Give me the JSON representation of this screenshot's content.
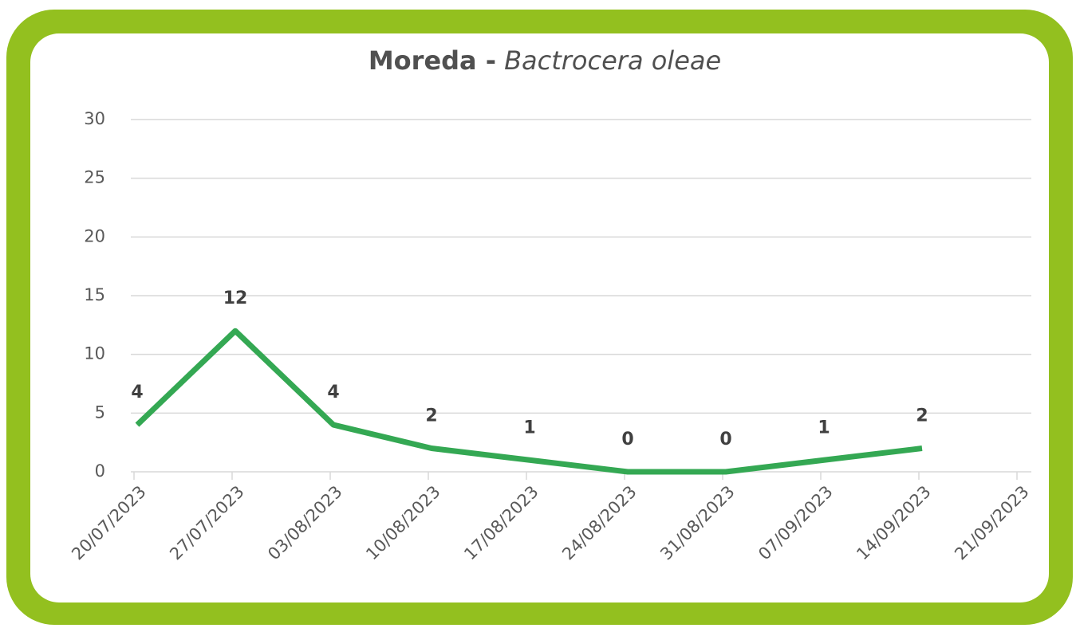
{
  "chart_data": {
    "type": "line",
    "title": [
      "Moreda -",
      "Bactrocera oleae"
    ],
    "categories": [
      "20/07/2023",
      "27/07/2023",
      "03/08/2023",
      "10/08/2023",
      "17/08/2023",
      "24/08/2023",
      "31/08/2023",
      "07/09/2023",
      "14/09/2023",
      "21/09/2023"
    ],
    "values": [
      4,
      12,
      4,
      2,
      1,
      0,
      0,
      1,
      2,
      null
    ],
    "color": "#34a853",
    "ylim": [
      0,
      30
    ],
    "yticks": [
      0,
      5,
      10,
      15,
      20,
      25,
      30
    ],
    "grid": true,
    "frame_color": "#93c01f"
  }
}
